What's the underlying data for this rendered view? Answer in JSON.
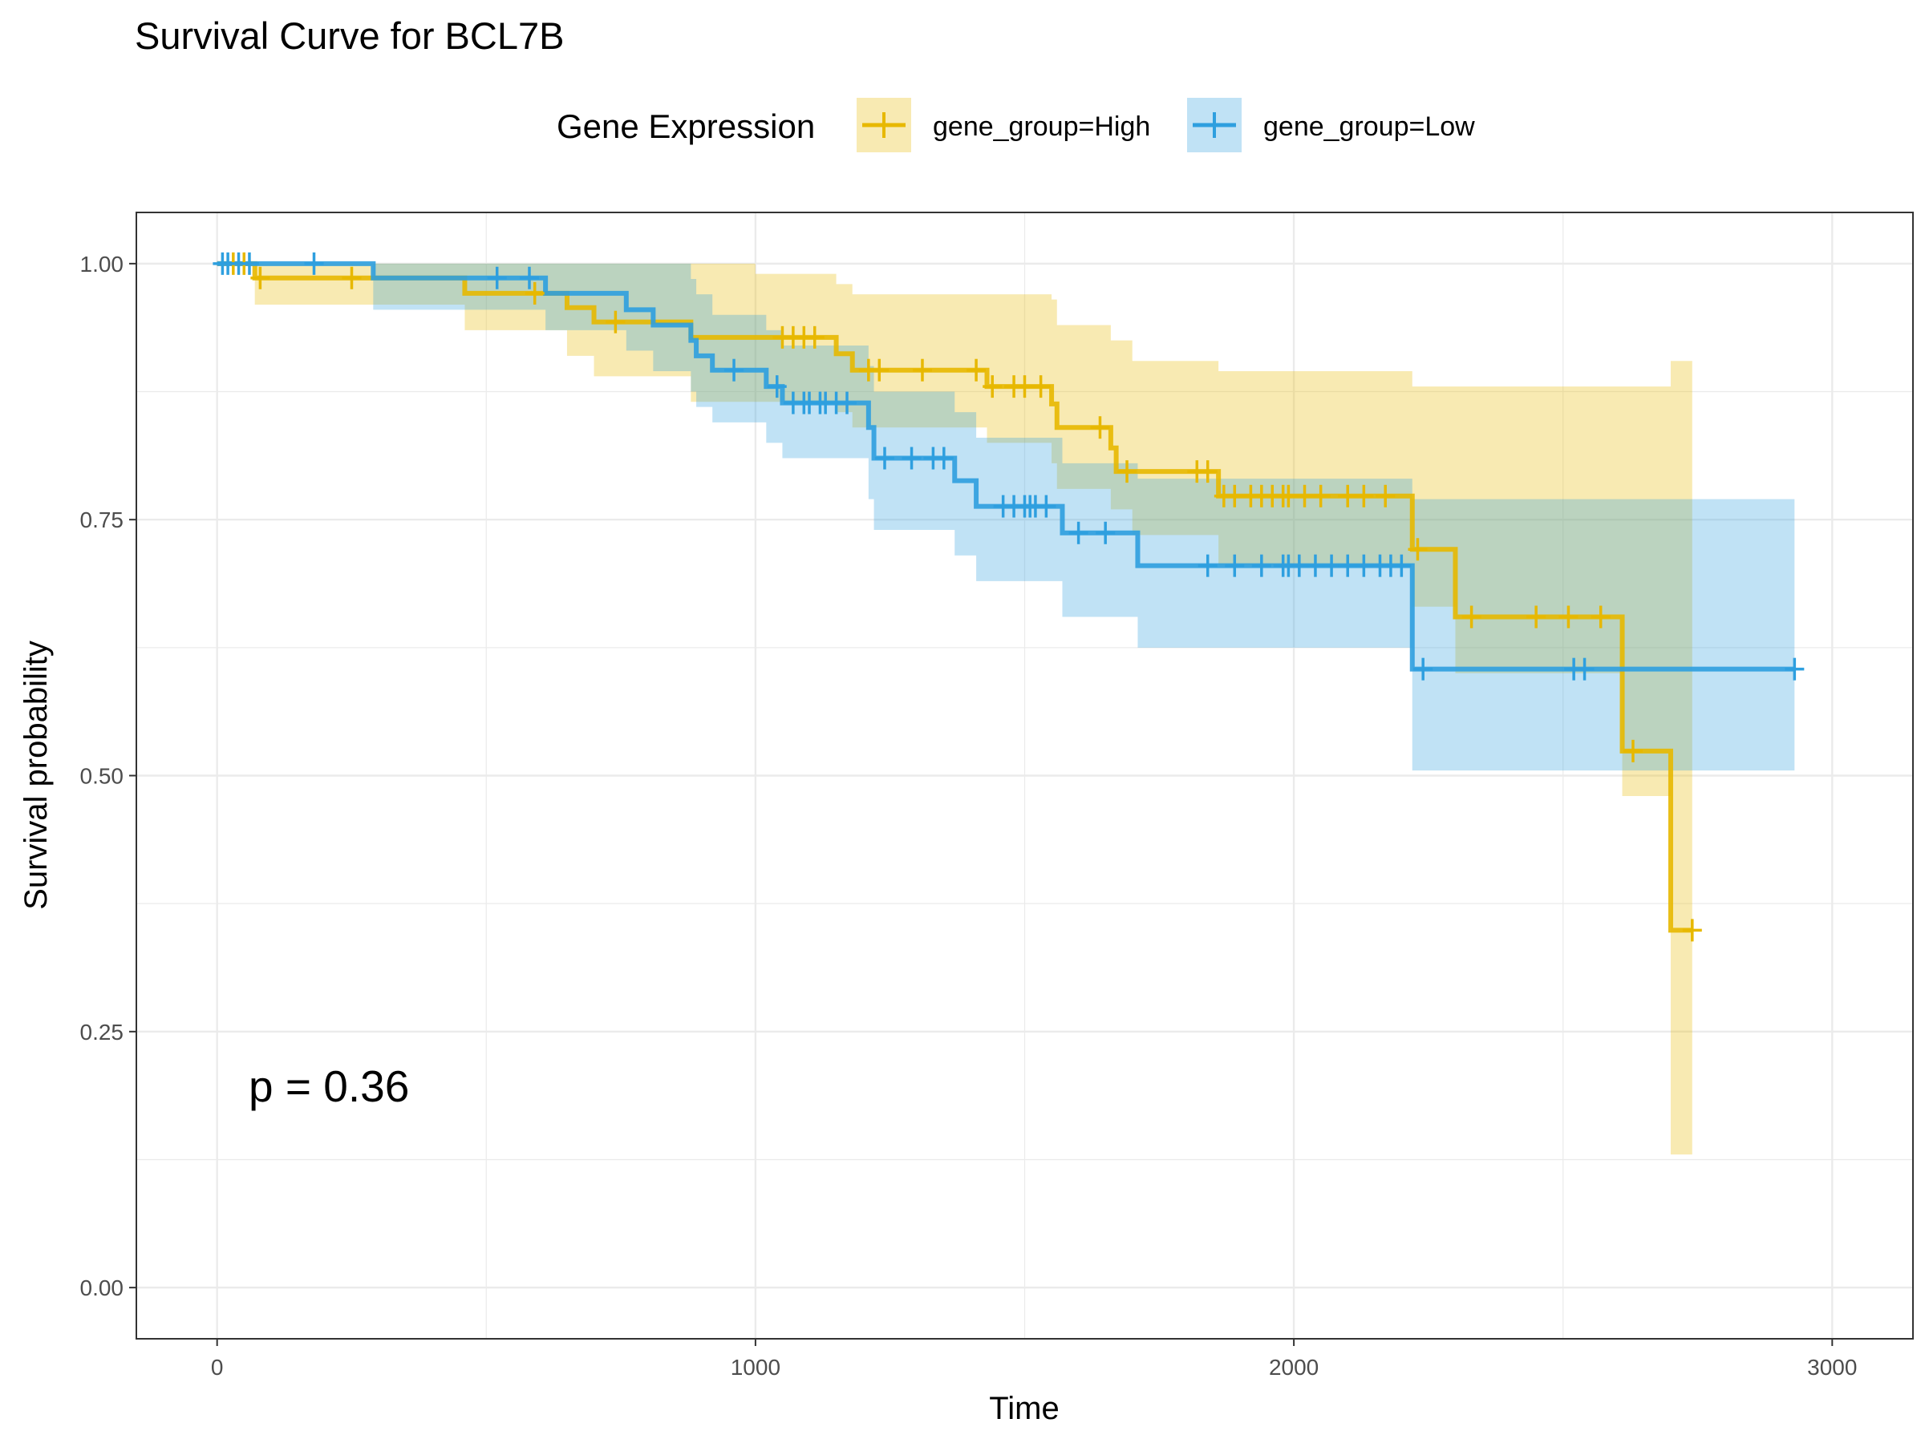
{
  "chart_data": {
    "type": "line",
    "chart_kind": "kaplan-meier survival curve",
    "title": "Survival Curve for BCL7B",
    "xlabel": "Time",
    "ylabel": "Survival probability",
    "xlim": [
      -150,
      3150
    ],
    "ylim": [
      -0.05,
      1.05
    ],
    "x_ticks": [
      0,
      1000,
      2000,
      3000
    ],
    "x_tick_labels": [
      "0",
      "1000",
      "2000",
      "3000"
    ],
    "y_ticks": [
      0,
      0.25,
      0.5,
      0.75,
      1.0
    ],
    "y_tick_labels": [
      "0.00",
      "0.25",
      "0.50",
      "0.75",
      "1.00"
    ],
    "grid": true,
    "legend": {
      "title": "Gene Expression",
      "placement": "top",
      "entries": [
        "gene_group=High",
        "gene_group=Low"
      ]
    },
    "annotation": "p = 0.36",
    "series": [
      {
        "name": "gene_group=High",
        "color": "#E7B800",
        "steps": [
          [
            0,
            1.0
          ],
          [
            70,
            0.986
          ],
          [
            460,
            0.971
          ],
          [
            650,
            0.957
          ],
          [
            700,
            0.943
          ],
          [
            880,
            0.928
          ],
          [
            1150,
            0.912
          ],
          [
            1180,
            0.896
          ],
          [
            1430,
            0.88
          ],
          [
            1550,
            0.863
          ],
          [
            1560,
            0.84
          ],
          [
            1660,
            0.82
          ],
          [
            1670,
            0.797
          ],
          [
            1860,
            0.773
          ],
          [
            2220,
            0.721
          ],
          [
            2300,
            0.655
          ],
          [
            2610,
            0.524
          ],
          [
            2700,
            0.349
          ],
          [
            2740,
            0.349
          ]
        ],
        "ci_steps": [
          [
            0,
            1.0,
            1.0
          ],
          [
            70,
            1.0,
            0.96
          ],
          [
            460,
            1.0,
            0.935
          ],
          [
            600,
            1.0,
            0.935
          ],
          [
            650,
            1.0,
            0.91
          ],
          [
            700,
            1.0,
            0.89
          ],
          [
            880,
            1.0,
            0.865
          ],
          [
            1000,
            0.99,
            0.865
          ],
          [
            1150,
            0.98,
            0.855
          ],
          [
            1180,
            0.97,
            0.84
          ],
          [
            1430,
            0.97,
            0.825
          ],
          [
            1550,
            0.965,
            0.805
          ],
          [
            1560,
            0.94,
            0.78
          ],
          [
            1660,
            0.925,
            0.76
          ],
          [
            1700,
            0.905,
            0.735
          ],
          [
            1860,
            0.895,
            0.705
          ],
          [
            2220,
            0.88,
            0.665
          ],
          [
            2300,
            0.88,
            0.6
          ],
          [
            2610,
            0.88,
            0.48
          ],
          [
            2700,
            0.905,
            0.13
          ],
          [
            2740,
            0.905,
            0.13
          ]
        ],
        "censored": [
          30,
          50,
          80,
          250,
          590,
          740,
          1050,
          1070,
          1090,
          1110,
          1210,
          1230,
          1310,
          1410,
          1440,
          1480,
          1500,
          1530,
          1640,
          1690,
          1820,
          1840,
          1870,
          1890,
          1920,
          1940,
          1960,
          1980,
          1990,
          2020,
          2050,
          2100,
          2130,
          2170,
          2230,
          2330,
          2450,
          2510,
          2570,
          2630,
          2740
        ]
      },
      {
        "name": "gene_group=Low",
        "color": "#2E9FDF",
        "steps": [
          [
            0,
            1.0
          ],
          [
            290,
            0.986
          ],
          [
            610,
            0.971
          ],
          [
            760,
            0.955
          ],
          [
            810,
            0.94
          ],
          [
            880,
            0.925
          ],
          [
            890,
            0.91
          ],
          [
            920,
            0.896
          ],
          [
            1020,
            0.88
          ],
          [
            1050,
            0.864
          ],
          [
            1210,
            0.84
          ],
          [
            1220,
            0.81
          ],
          [
            1370,
            0.788
          ],
          [
            1410,
            0.763
          ],
          [
            1570,
            0.737
          ],
          [
            1710,
            0.705
          ],
          [
            2220,
            0.604
          ],
          [
            2930,
            0.604
          ]
        ],
        "ci_steps": [
          [
            0,
            1.0,
            1.0
          ],
          [
            290,
            1.0,
            0.955
          ],
          [
            610,
            1.0,
            0.935
          ],
          [
            760,
            1.0,
            0.915
          ],
          [
            810,
            1.0,
            0.895
          ],
          [
            880,
            0.985,
            0.875
          ],
          [
            890,
            0.97,
            0.86
          ],
          [
            920,
            0.95,
            0.845
          ],
          [
            1020,
            0.935,
            0.825
          ],
          [
            1050,
            0.92,
            0.81
          ],
          [
            1210,
            0.9,
            0.77
          ],
          [
            1220,
            0.875,
            0.74
          ],
          [
            1370,
            0.855,
            0.715
          ],
          [
            1410,
            0.83,
            0.69
          ],
          [
            1570,
            0.805,
            0.655
          ],
          [
            1710,
            0.79,
            0.625
          ],
          [
            2220,
            0.77,
            0.505
          ],
          [
            2930,
            0.77,
            0.505
          ]
        ],
        "censored": [
          10,
          20,
          40,
          60,
          180,
          520,
          580,
          960,
          1040,
          1070,
          1090,
          1100,
          1120,
          1130,
          1150,
          1170,
          1240,
          1290,
          1330,
          1350,
          1460,
          1480,
          1500,
          1510,
          1520,
          1540,
          1600,
          1650,
          1840,
          1890,
          1940,
          1980,
          1990,
          2010,
          2040,
          2070,
          2100,
          2130,
          2160,
          2180,
          2200,
          2240,
          2520,
          2540,
          2930
        ]
      }
    ]
  }
}
